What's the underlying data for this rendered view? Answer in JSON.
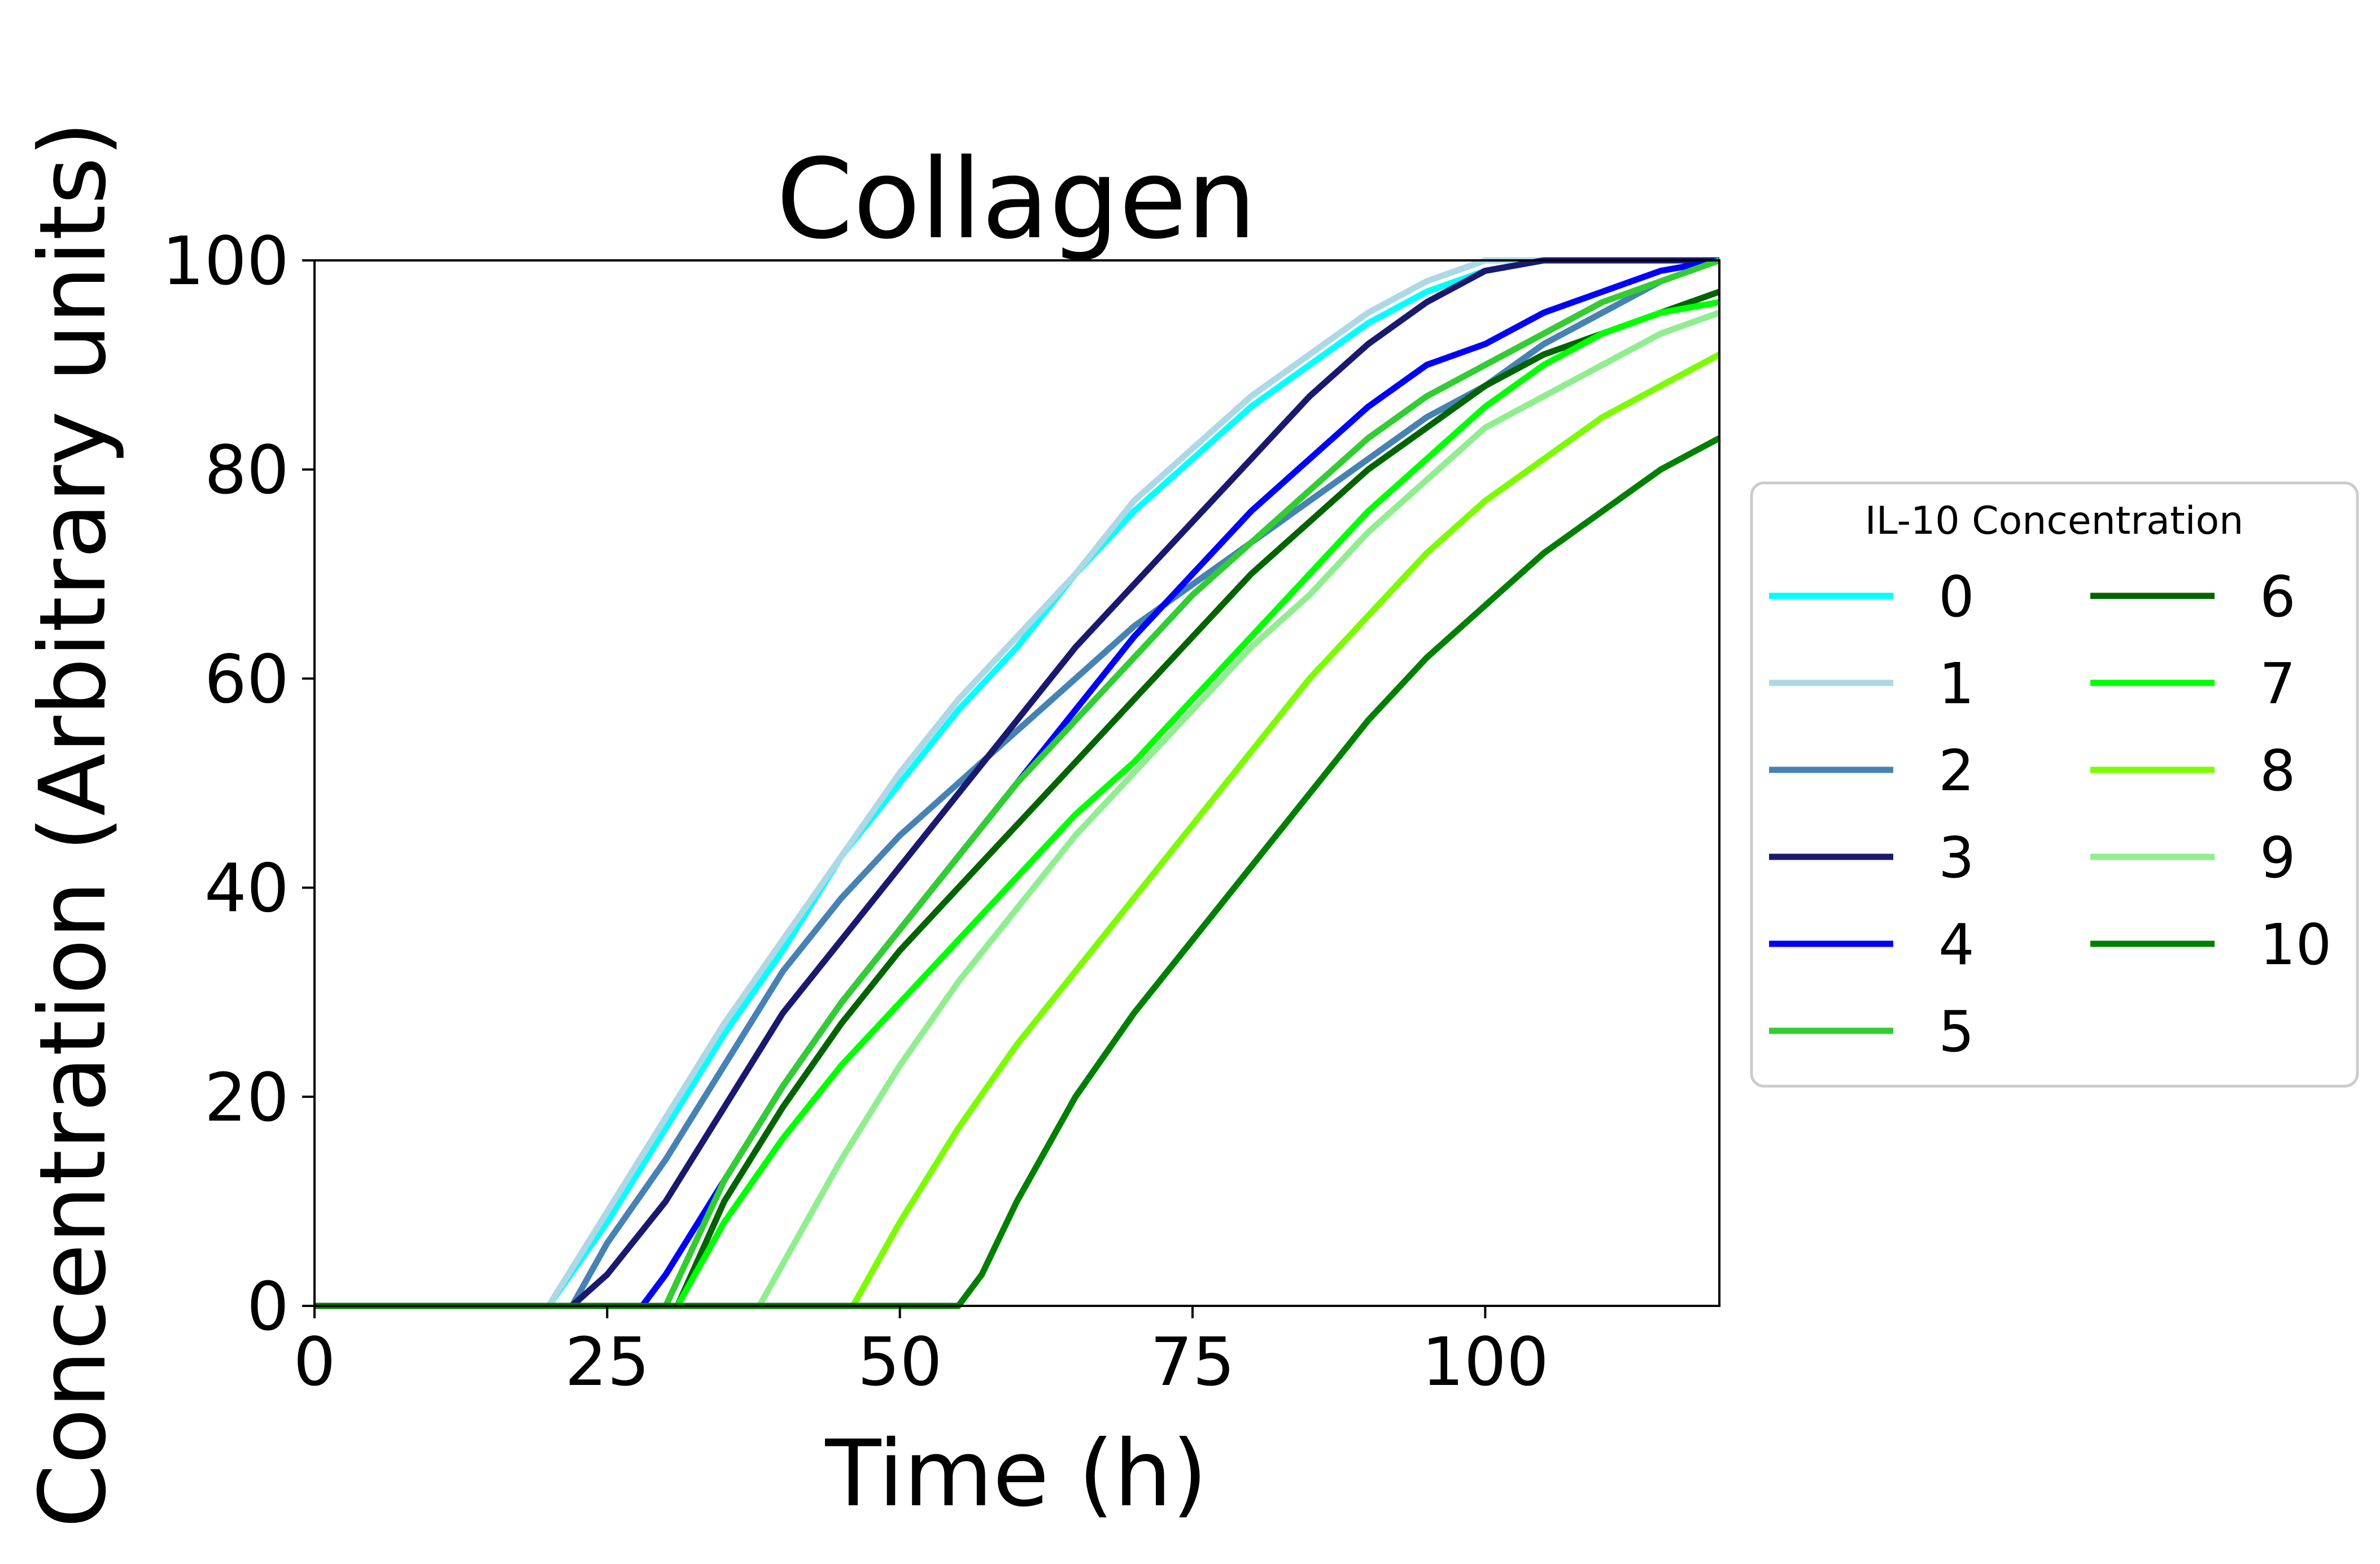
{
  "chart_data": {
    "type": "line",
    "title": "Collagen",
    "xlabel": "Time (h)",
    "ylabel": "Concentration (Arbitrary units)",
    "xlim": [
      0,
      120
    ],
    "ylim": [
      0,
      100
    ],
    "xticks": [
      0,
      25,
      50,
      75,
      100
    ],
    "yticks": [
      0,
      20,
      40,
      60,
      80,
      100
    ],
    "grid": false,
    "legend": {
      "title": "IL-10 Concentration",
      "placement": "center-right outside",
      "columns": 2
    },
    "series": [
      {
        "name": "0",
        "color": "#00FFFF",
        "points": [
          [
            0,
            0
          ],
          [
            20,
            0
          ],
          [
            25,
            8
          ],
          [
            30,
            17
          ],
          [
            35,
            26
          ],
          [
            40,
            34
          ],
          [
            45,
            43
          ],
          [
            50,
            50
          ],
          [
            55,
            57
          ],
          [
            60,
            63
          ],
          [
            65,
            70
          ],
          [
            70,
            76
          ],
          [
            75,
            81
          ],
          [
            80,
            86
          ],
          [
            85,
            90
          ],
          [
            90,
            94
          ],
          [
            95,
            97
          ],
          [
            100,
            99
          ],
          [
            105,
            100
          ],
          [
            120,
            100
          ]
        ]
      },
      {
        "name": "1",
        "color": "#ADD8E6",
        "points": [
          [
            0,
            0
          ],
          [
            20,
            0
          ],
          [
            25,
            9
          ],
          [
            30,
            18
          ],
          [
            35,
            27
          ],
          [
            40,
            35
          ],
          [
            45,
            43
          ],
          [
            50,
            51
          ],
          [
            55,
            58
          ],
          [
            60,
            64
          ],
          [
            65,
            70
          ],
          [
            70,
            77
          ],
          [
            75,
            82
          ],
          [
            80,
            87
          ],
          [
            85,
            91
          ],
          [
            90,
            95
          ],
          [
            95,
            98
          ],
          [
            100,
            100
          ],
          [
            120,
            100
          ]
        ]
      },
      {
        "name": "2",
        "color": "#4682B4",
        "points": [
          [
            0,
            0
          ],
          [
            22,
            0
          ],
          [
            25,
            6
          ],
          [
            30,
            14
          ],
          [
            35,
            23
          ],
          [
            40,
            32
          ],
          [
            45,
            39
          ],
          [
            50,
            45
          ],
          [
            55,
            50
          ],
          [
            60,
            55
          ],
          [
            65,
            60
          ],
          [
            70,
            65
          ],
          [
            75,
            69
          ],
          [
            80,
            73
          ],
          [
            85,
            77
          ],
          [
            90,
            81
          ],
          [
            95,
            85
          ],
          [
            100,
            88
          ],
          [
            105,
            92
          ],
          [
            110,
            95
          ],
          [
            115,
            98
          ],
          [
            120,
            100
          ]
        ]
      },
      {
        "name": "3",
        "color": "#191970",
        "points": [
          [
            0,
            0
          ],
          [
            22,
            0
          ],
          [
            25,
            3
          ],
          [
            30,
            10
          ],
          [
            35,
            19
          ],
          [
            40,
            28
          ],
          [
            45,
            35
          ],
          [
            50,
            42
          ],
          [
            55,
            49
          ],
          [
            60,
            56
          ],
          [
            65,
            63
          ],
          [
            70,
            69
          ],
          [
            75,
            75
          ],
          [
            80,
            81
          ],
          [
            85,
            87
          ],
          [
            90,
            92
          ],
          [
            95,
            96
          ],
          [
            100,
            99
          ],
          [
            105,
            100
          ],
          [
            120,
            100
          ]
        ]
      },
      {
        "name": "4",
        "color": "#0000FF",
        "points": [
          [
            0,
            0
          ],
          [
            28,
            0
          ],
          [
            30,
            3
          ],
          [
            35,
            12
          ],
          [
            40,
            21
          ],
          [
            45,
            29
          ],
          [
            50,
            36
          ],
          [
            55,
            43
          ],
          [
            60,
            50
          ],
          [
            65,
            57
          ],
          [
            70,
            64
          ],
          [
            75,
            70
          ],
          [
            80,
            76
          ],
          [
            85,
            81
          ],
          [
            90,
            86
          ],
          [
            95,
            90
          ],
          [
            100,
            92
          ],
          [
            105,
            95
          ],
          [
            110,
            97
          ],
          [
            115,
            99
          ],
          [
            120,
            100
          ]
        ]
      },
      {
        "name": "5",
        "color": "#32CD32",
        "points": [
          [
            0,
            0
          ],
          [
            30,
            0
          ],
          [
            35,
            12
          ],
          [
            40,
            21
          ],
          [
            45,
            29
          ],
          [
            50,
            36
          ],
          [
            55,
            43
          ],
          [
            60,
            50
          ],
          [
            65,
            56
          ],
          [
            70,
            62
          ],
          [
            75,
            68
          ],
          [
            80,
            73
          ],
          [
            85,
            78
          ],
          [
            90,
            83
          ],
          [
            95,
            87
          ],
          [
            100,
            90
          ],
          [
            105,
            93
          ],
          [
            110,
            96
          ],
          [
            115,
            98
          ],
          [
            120,
            100
          ]
        ]
      },
      {
        "name": "6",
        "color": "#006400",
        "points": [
          [
            0,
            0
          ],
          [
            31,
            0
          ],
          [
            35,
            10
          ],
          [
            40,
            19
          ],
          [
            45,
            27
          ],
          [
            50,
            34
          ],
          [
            55,
            40
          ],
          [
            60,
            46
          ],
          [
            65,
            52
          ],
          [
            70,
            58
          ],
          [
            75,
            64
          ],
          [
            80,
            70
          ],
          [
            85,
            75
          ],
          [
            90,
            80
          ],
          [
            95,
            84
          ],
          [
            100,
            88
          ],
          [
            105,
            91
          ],
          [
            110,
            93
          ],
          [
            115,
            95
          ],
          [
            120,
            97
          ]
        ]
      },
      {
        "name": "7",
        "color": "#00FF00",
        "points": [
          [
            0,
            0
          ],
          [
            31,
            0
          ],
          [
            35,
            8
          ],
          [
            40,
            16
          ],
          [
            45,
            23
          ],
          [
            50,
            29
          ],
          [
            55,
            35
          ],
          [
            60,
            41
          ],
          [
            65,
            47
          ],
          [
            70,
            52
          ],
          [
            75,
            58
          ],
          [
            80,
            64
          ],
          [
            85,
            70
          ],
          [
            90,
            76
          ],
          [
            95,
            81
          ],
          [
            100,
            86
          ],
          [
            105,
            90
          ],
          [
            110,
            93
          ],
          [
            115,
            95
          ],
          [
            120,
            96
          ]
        ]
      },
      {
        "name": "8",
        "color": "#7CFC00",
        "points": [
          [
            0,
            0
          ],
          [
            46,
            0
          ],
          [
            50,
            8
          ],
          [
            55,
            17
          ],
          [
            60,
            25
          ],
          [
            65,
            32
          ],
          [
            70,
            39
          ],
          [
            75,
            46
          ],
          [
            80,
            53
          ],
          [
            85,
            60
          ],
          [
            90,
            66
          ],
          [
            95,
            72
          ],
          [
            100,
            77
          ],
          [
            105,
            81
          ],
          [
            110,
            85
          ],
          [
            115,
            88
          ],
          [
            120,
            91
          ]
        ]
      },
      {
        "name": "9",
        "color": "#90EE90",
        "points": [
          [
            0,
            0
          ],
          [
            38,
            0
          ],
          [
            40,
            4
          ],
          [
            45,
            14
          ],
          [
            50,
            23
          ],
          [
            55,
            31
          ],
          [
            60,
            38
          ],
          [
            65,
            45
          ],
          [
            70,
            51
          ],
          [
            75,
            57
          ],
          [
            80,
            63
          ],
          [
            85,
            68
          ],
          [
            90,
            74
          ],
          [
            95,
            79
          ],
          [
            100,
            84
          ],
          [
            105,
            87
          ],
          [
            110,
            90
          ],
          [
            115,
            93
          ],
          [
            120,
            95
          ]
        ]
      },
      {
        "name": "10",
        "color": "#008000",
        "points": [
          [
            0,
            0
          ],
          [
            55,
            0
          ],
          [
            57,
            3
          ],
          [
            60,
            10
          ],
          [
            65,
            20
          ],
          [
            70,
            28
          ],
          [
            75,
            35
          ],
          [
            80,
            42
          ],
          [
            85,
            49
          ],
          [
            90,
            56
          ],
          [
            95,
            62
          ],
          [
            100,
            67
          ],
          [
            105,
            72
          ],
          [
            110,
            76
          ],
          [
            115,
            80
          ],
          [
            120,
            83
          ]
        ]
      }
    ]
  }
}
